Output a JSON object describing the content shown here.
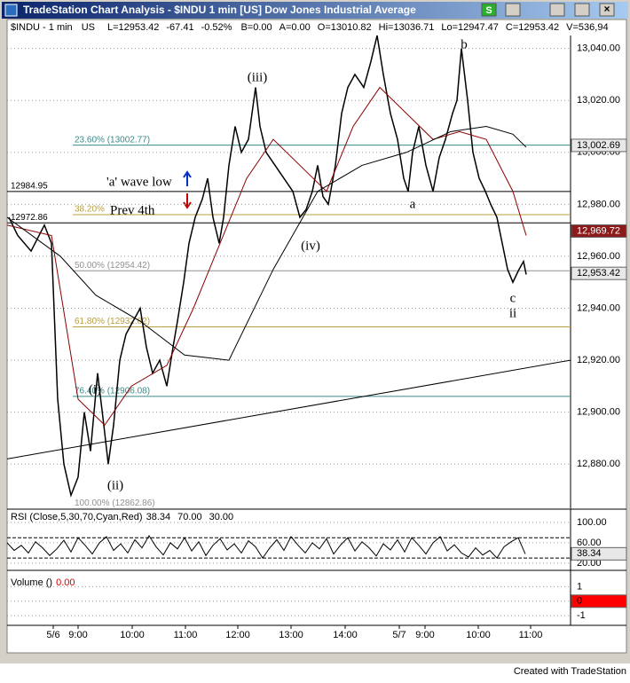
{
  "window": {
    "title": "TradeStation Chart Analysis - $INDU 1 min  [US] Dow Jones Industrial Average",
    "button": "S"
  },
  "info": [
    "$INDU - 1 min",
    "US",
    "L=12953.42",
    "-67.41",
    "-0.52%",
    "B=0.00",
    "A=0.00",
    "O=13010.82",
    "Hi=13036.71",
    "Lo=12947.47",
    "C=12953.42",
    "V=536,94"
  ],
  "chart_data": [
    {
      "type": "line",
      "xlim": [
        0,
        635
      ],
      "xticks": [
        {
          "value": 52,
          "label": "5/6"
        },
        {
          "value": 80,
          "label": "9:00"
        },
        {
          "value": 141,
          "label": "10:00"
        },
        {
          "value": 201,
          "label": "11:00"
        },
        {
          "value": 260,
          "label": "12:00"
        },
        {
          "value": 320,
          "label": "13:00"
        },
        {
          "value": 381,
          "label": "14:00"
        },
        {
          "value": 442,
          "label": "5/7"
        },
        {
          "value": 471,
          "label": "9:00"
        },
        {
          "value": 531,
          "label": "10:00"
        },
        {
          "value": 590,
          "label": "11:00"
        }
      ],
      "ylim": [
        12863,
        13045
      ],
      "yticks": [
        {
          "value": 12880,
          "label": "12,880.00"
        },
        {
          "value": 12900,
          "label": "12,900.00"
        },
        {
          "value": 12920,
          "label": "12,920.00"
        },
        {
          "value": 12940,
          "label": "12,940.00"
        },
        {
          "value": 12960,
          "label": "12,960.00"
        },
        {
          "value": 12980,
          "label": "12,980.00"
        },
        {
          "value": 13000,
          "label": "13,000.00"
        },
        {
          "value": 13020,
          "label": "13,020.00"
        },
        {
          "value": 13040,
          "label": "13,040.00"
        }
      ],
      "grid": true,
      "series": [
        {
          "color": "#000000",
          "x": [
            2,
            12,
            27,
            42,
            50,
            57,
            64,
            72,
            80,
            87,
            94,
            102,
            109,
            114,
            120,
            127,
            134,
            142,
            150,
            157,
            164,
            172,
            180,
            187,
            192,
            199,
            205,
            212,
            220,
            226,
            232,
            239,
            244,
            250,
            257,
            264,
            272,
            280,
            285,
            292,
            302,
            312,
            322,
            330,
            337,
            344,
            350,
            356,
            362,
            370,
            377,
            384,
            392,
            402,
            410,
            417,
            424,
            432,
            440,
            447,
            452,
            457,
            464,
            472,
            480,
            487,
            494,
            502,
            507,
            512,
            519,
            525,
            532,
            539,
            545,
            552,
            558,
            564,
            570,
            577,
            582,
            585
          ],
          "values": [
            12975,
            12968,
            12962,
            12972,
            12965,
            12905,
            12880,
            12868,
            12875,
            12900,
            12885,
            12915,
            12895,
            12880,
            12895,
            12920,
            12930,
            12935,
            12940,
            12925,
            12915,
            12920,
            12910,
            12925,
            12935,
            12950,
            12965,
            12975,
            12982,
            12990,
            12975,
            12965,
            12975,
            12995,
            13010,
            13000,
            13005,
            13025,
            13010,
            13000,
            12995,
            12990,
            12985,
            12975,
            12978,
            12985,
            12995,
            12983,
            12980,
            12995,
            13015,
            13025,
            13030,
            13025,
            13035,
            13045,
            13030,
            13015,
            13005,
            12990,
            12985,
            13000,
            13010,
            12995,
            12985,
            12998,
            13005,
            13015,
            13020,
            13040,
            13020,
            13000,
            12990,
            12985,
            12980,
            12975,
            12965,
            12955,
            12950,
            12955,
            12958,
            12953
          ]
        },
        {
          "color": "#8b0000",
          "x": [
            0,
            50,
            80,
            110,
            140,
            180,
            210,
            240,
            270,
            300,
            330,
            360,
            390,
            420,
            450,
            480,
            510,
            540,
            570,
            585
          ],
          "values": [
            12972,
            12968,
            12905,
            12895,
            12910,
            12918,
            12940,
            12965,
            12990,
            13005,
            12995,
            12985,
            13010,
            13025,
            13015,
            13005,
            13008,
            13005,
            12985,
            12968
          ]
        },
        {
          "color": "#000000",
          "x": [
            0,
            60,
            100,
            150,
            200,
            250,
            300,
            350,
            400,
            450,
            500,
            540,
            570,
            585
          ],
          "values": [
            12975,
            12960,
            12945,
            12935,
            12922,
            12920,
            12955,
            12985,
            12995,
            13000,
            13008,
            13010,
            13007,
            13002
          ]
        },
        {
          "color": "#000000",
          "x": [
            0,
            635
          ],
          "values": [
            12882,
            12920
          ]
        }
      ],
      "levels": [
        {
          "value": 13002.77,
          "label": "23.60% (13002.77)",
          "color": "#3a8a8a"
        },
        {
          "value": 12976.03,
          "label": "38.20%",
          "color": "#b8a040"
        },
        {
          "value": 12954.42,
          "label": "50.00% (12954.42)",
          "color": "#909090"
        },
        {
          "value": 12932.82,
          "label": "61.80% (12932.82)",
          "color": "#b8a040"
        },
        {
          "value": 12906.08,
          "label": "76.40% (12906.08)",
          "color": "#3a8a8a"
        },
        {
          "value": 12862.86,
          "label": "100.00% (12862.86)",
          "color": "#909090"
        }
      ],
      "lines": [
        {
          "value": 12984.95,
          "label": "12984.95"
        },
        {
          "value": 12972.86,
          "label": "12972.86"
        }
      ],
      "price_boxes": [
        {
          "value": 13002.69,
          "label": "13,002.69",
          "color": "#e8e8e8"
        },
        {
          "value": 12969.72,
          "label": "12,969.72",
          "color": "#8b1a1a"
        },
        {
          "value": 12953.42,
          "label": "12,953.42",
          "color": "#e8e8e8"
        }
      ],
      "annotations": [
        "(iii)",
        "'a' wave low",
        "Prev 4th",
        "(iv)",
        "a",
        "b",
        "c",
        "ii",
        "(i)",
        "(ii)"
      ]
    },
    {
      "type": "line",
      "title": "RSI (Close,5,30,70,Cyan,Red)",
      "readout": [
        "38.34",
        "70.00",
        "30.00"
      ],
      "ylim": [
        11,
        121
      ],
      "yticks": [
        {
          "value": 100,
          "label": "100.00"
        },
        {
          "value": 60,
          "label": "60.00"
        },
        {
          "value": 20,
          "label": "20.00"
        }
      ],
      "levels": [
        70,
        30
      ],
      "current": {
        "value": 38.34,
        "label": "38.34"
      },
      "series": [
        {
          "color": "#000000",
          "x": [
            0,
            8,
            16,
            24,
            32,
            40,
            48,
            56,
            64,
            72,
            80,
            88,
            96,
            104,
            112,
            120,
            128,
            136,
            144,
            152,
            160,
            168,
            176,
            184,
            192,
            200,
            208,
            216,
            224,
            232,
            240,
            248,
            256,
            264,
            272,
            280,
            288,
            296,
            304,
            312,
            320,
            328,
            336,
            344,
            352,
            360,
            368,
            376,
            384,
            392,
            400,
            408,
            416,
            424,
            432,
            440,
            448,
            456,
            464,
            472,
            480,
            488,
            496,
            504,
            512,
            520,
            528,
            536,
            544,
            552,
            560,
            568,
            576,
            584
          ],
          "values": [
            60,
            45,
            55,
            40,
            62,
            50,
            35,
            48,
            65,
            42,
            70,
            55,
            38,
            60,
            72,
            45,
            58,
            40,
            66,
            50,
            74,
            52,
            36,
            60,
            48,
            70,
            44,
            62,
            35,
            55,
            68,
            46,
            58,
            40,
            64,
            52,
            30,
            50,
            66,
            45,
            72,
            55,
            40,
            60,
            48,
            68,
            38,
            56,
            70,
            44,
            62,
            50,
            34,
            58,
            46,
            66,
            42,
            70,
            55,
            38,
            60,
            72,
            44,
            56,
            40,
            32,
            50,
            36,
            45,
            30,
            52,
            62,
            70,
            38
          ]
        }
      ]
    },
    {
      "type": "line",
      "title": "Volume ()",
      "readout": "0.00",
      "ylim": [
        -1.6,
        2
      ],
      "yticks": [
        1,
        0,
        -1
      ],
      "current": {
        "value": 0,
        "label": "0"
      }
    }
  ],
  "footer": "Created with TradeStation"
}
